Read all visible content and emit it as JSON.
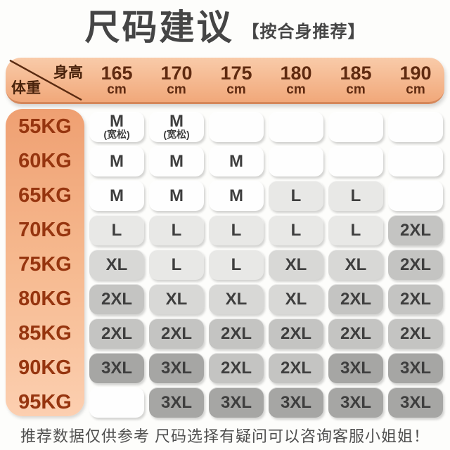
{
  "title": {
    "main": "尺码建议",
    "badge": "【按合身推荐】"
  },
  "header": {
    "height_label": "身高",
    "weight_label": "体重",
    "unit": "cm"
  },
  "chart_data": {
    "type": "table",
    "title": "尺码建议 【按合身推荐】",
    "col_axis_label": "身高",
    "row_axis_label": "体重",
    "columns": [
      "165",
      "170",
      "175",
      "180",
      "185",
      "190"
    ],
    "column_unit": "cm",
    "rows": [
      "55KG",
      "60KG",
      "65KG",
      "70KG",
      "75KG",
      "80KG",
      "85KG",
      "90KG",
      "95KG"
    ],
    "cells": [
      [
        "M\n(宽松)",
        "M\n(宽松)",
        "",
        "",
        "",
        ""
      ],
      [
        "M",
        "M",
        "M",
        "",
        "",
        ""
      ],
      [
        "M",
        "M",
        "M",
        "L",
        "L",
        ""
      ],
      [
        "L",
        "L",
        "L",
        "L",
        "L",
        "2XL"
      ],
      [
        "XL",
        "L",
        "L",
        "XL",
        "XL",
        "2XL"
      ],
      [
        "2XL",
        "XL",
        "XL",
        "XL",
        "2XL",
        "2XL"
      ],
      [
        "2XL",
        "2XL",
        "2XL",
        "2XL",
        "2XL",
        "2XL"
      ],
      [
        "3XL",
        "3XL",
        "2XL",
        "2XL",
        "3XL",
        "3XL"
      ],
      [
        "",
        "3XL",
        "3XL",
        "3XL",
        "3XL",
        "3XL"
      ]
    ]
  },
  "size_colors": {
    "M": "#fefefe",
    "L": "#e8e8e6",
    "XL": "#d8d8d6",
    "2XL": "#c4c4c2",
    "3XL": "#a6a6a4",
    "": "#fefefe"
  },
  "theme": {
    "page_bg": "#fdfdfb",
    "title_color": "#454545",
    "header_grad_top": "#f9cba9",
    "header_grad_bottom": "#f1a87a",
    "header_rim": "#d5875a",
    "label_dark_brown": "#4a230c",
    "header_num_brown": "#5f2a10",
    "weight_grad_top": "#efa072",
    "weight_grad_bottom": "#fccfb0",
    "weight_text": "#96350f",
    "cell_text": "#3e3e3e",
    "footer_color": "#4e4e4e"
  },
  "footer": {
    "note": "推荐数据仅供参考 尺码选择有疑问可以咨询客服小姐姐！"
  }
}
